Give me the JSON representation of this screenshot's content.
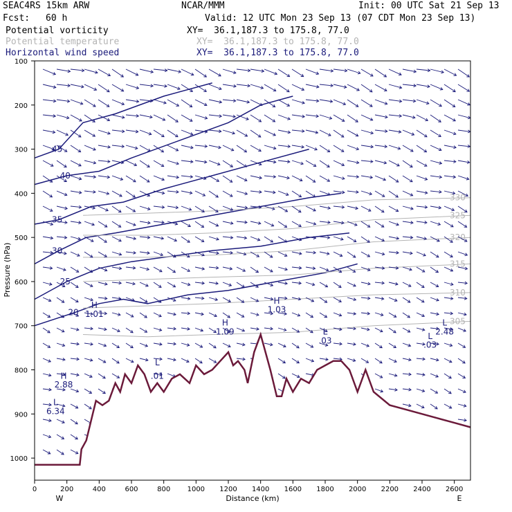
{
  "header": {
    "model": "SEAC4RS 15km ARW",
    "org": "NCAR/MMM",
    "init": "Init: 00 UTC Sat 21 Sep 13",
    "fcst_label": "Fcst:",
    "fcst_value": "60 h",
    "valid": "Valid: 12 UTC Mon 23 Sep 13 (07 CDT Mon 23 Sep 13)"
  },
  "fields": [
    {
      "name": "Potential vorticity",
      "xy": "XY=  36.1,187.3 to 175.8, 77.0",
      "color": "#000000"
    },
    {
      "name": "Potential temperature",
      "xy": "XY=  36.1,187.3 to 175.8, 77.0",
      "color": "#b4b4b4"
    },
    {
      "name": "Horizontal wind speed",
      "xy": "XY=  36.1,187.3 to 175.8, 77.0",
      "color": "#1a1a7a"
    }
  ],
  "chart_data": {
    "type": "cross-section",
    "xlabel": "Distance (km)",
    "ylabel": "Pressure (hPa)",
    "xlim": [
      0,
      2700
    ],
    "ylim": [
      1050,
      100
    ],
    "x_ticks": [
      0,
      200,
      400,
      600,
      800,
      1000,
      1200,
      1400,
      1600,
      1800,
      2000,
      2200,
      2400,
      2600
    ],
    "y_ticks": [
      100,
      200,
      300,
      400,
      500,
      600,
      700,
      800,
      900,
      1000
    ],
    "west_label": "W",
    "east_label": "E",
    "terrain": [
      [
        0,
        1015
      ],
      [
        280,
        1015
      ],
      [
        290,
        980
      ],
      [
        320,
        960
      ],
      [
        360,
        900
      ],
      [
        380,
        870
      ],
      [
        420,
        880
      ],
      [
        460,
        870
      ],
      [
        500,
        830
      ],
      [
        530,
        850
      ],
      [
        560,
        810
      ],
      [
        600,
        830
      ],
      [
        640,
        790
      ],
      [
        680,
        810
      ],
      [
        720,
        850
      ],
      [
        760,
        830
      ],
      [
        800,
        850
      ],
      [
        850,
        820
      ],
      [
        900,
        810
      ],
      [
        960,
        830
      ],
      [
        1000,
        790
      ],
      [
        1050,
        810
      ],
      [
        1100,
        800
      ],
      [
        1150,
        780
      ],
      [
        1200,
        760
      ],
      [
        1230,
        790
      ],
      [
        1260,
        780
      ],
      [
        1300,
        800
      ],
      [
        1320,
        830
      ],
      [
        1360,
        760
      ],
      [
        1400,
        720
      ],
      [
        1430,
        760
      ],
      [
        1460,
        800
      ],
      [
        1500,
        860
      ],
      [
        1530,
        860
      ],
      [
        1560,
        820
      ],
      [
        1600,
        850
      ],
      [
        1650,
        820
      ],
      [
        1700,
        830
      ],
      [
        1750,
        800
      ],
      [
        1800,
        790
      ],
      [
        1850,
        780
      ],
      [
        1900,
        780
      ],
      [
        1950,
        800
      ],
      [
        2000,
        850
      ],
      [
        2050,
        800
      ],
      [
        2100,
        850
      ],
      [
        2200,
        880
      ],
      [
        2300,
        890
      ],
      [
        2400,
        900
      ],
      [
        2500,
        910
      ],
      [
        2600,
        920
      ],
      [
        2700,
        930
      ]
    ],
    "wind_speed_contours": [
      {
        "label": "45",
        "points": [
          [
            0,
            320
          ],
          [
            150,
            300
          ],
          [
            300,
            240
          ],
          [
            500,
            220
          ],
          [
            800,
            180
          ],
          [
            1100,
            150
          ]
        ]
      },
      {
        "label": "40",
        "points": [
          [
            0,
            380
          ],
          [
            200,
            360
          ],
          [
            400,
            350
          ],
          [
            600,
            320
          ],
          [
            900,
            280
          ],
          [
            1200,
            240
          ],
          [
            1400,
            200
          ],
          [
            1600,
            180
          ]
        ]
      },
      {
        "label": "35",
        "points": [
          [
            0,
            470
          ],
          [
            150,
            460
          ],
          [
            350,
            430
          ],
          [
            550,
            420
          ],
          [
            800,
            390
          ],
          [
            1100,
            360
          ],
          [
            1400,
            330
          ],
          [
            1700,
            300
          ]
        ]
      },
      {
        "label": "30",
        "points": [
          [
            0,
            560
          ],
          [
            150,
            530
          ],
          [
            320,
            500
          ],
          [
            500,
            490
          ],
          [
            800,
            470
          ],
          [
            1100,
            450
          ],
          [
            1400,
            430
          ],
          [
            1700,
            410
          ],
          [
            1900,
            400
          ]
        ]
      },
      {
        "label": "25",
        "points": [
          [
            0,
            640
          ],
          [
            200,
            600
          ],
          [
            400,
            570
          ],
          [
            600,
            555
          ],
          [
            900,
            540
          ],
          [
            1100,
            530
          ],
          [
            1400,
            520
          ],
          [
            1700,
            500
          ],
          [
            1950,
            490
          ]
        ]
      },
      {
        "label": "20",
        "points": [
          [
            0,
            700
          ],
          [
            250,
            670
          ],
          [
            400,
            650
          ],
          [
            550,
            640
          ],
          [
            700,
            650
          ],
          [
            950,
            630
          ],
          [
            1200,
            620
          ],
          [
            1500,
            600
          ],
          [
            1800,
            580
          ],
          [
            2000,
            560
          ]
        ]
      }
    ],
    "theta_contours": [
      {
        "label": "305",
        "points": [
          [
            300,
            720
          ],
          [
            700,
            725
          ],
          [
            1100,
            720
          ],
          [
            1600,
            715
          ],
          [
            2100,
            700
          ],
          [
            2700,
            690
          ]
        ]
      },
      {
        "label": "310",
        "points": [
          [
            300,
            660
          ],
          [
            700,
            655
          ],
          [
            1100,
            650
          ],
          [
            1600,
            640
          ],
          [
            2100,
            630
          ],
          [
            2700,
            625
          ]
        ]
      },
      {
        "label": "315",
        "points": [
          [
            300,
            600
          ],
          [
            700,
            595
          ],
          [
            1100,
            590
          ],
          [
            1600,
            585
          ],
          [
            2100,
            570
          ],
          [
            2700,
            560
          ]
        ]
      },
      {
        "label": "320",
        "points": [
          [
            300,
            545
          ],
          [
            700,
            545
          ],
          [
            1100,
            540
          ],
          [
            1600,
            530
          ],
          [
            2100,
            510
          ],
          [
            2700,
            500
          ]
        ]
      },
      {
        "label": "325",
        "points": [
          [
            300,
            495
          ],
          [
            700,
            495
          ],
          [
            1100,
            490
          ],
          [
            1600,
            480
          ],
          [
            2100,
            460
          ],
          [
            2700,
            450
          ]
        ]
      },
      {
        "label": "330",
        "points": [
          [
            300,
            450
          ],
          [
            700,
            445
          ],
          [
            1100,
            440
          ],
          [
            1600,
            430
          ],
          [
            2100,
            415
          ],
          [
            2700,
            410
          ]
        ]
      }
    ],
    "annotations": [
      {
        "text": "H",
        "x": 370,
        "y": 660
      },
      {
        "text": "1.01",
        "x": 370,
        "y": 680
      },
      {
        "text": "H",
        "x": 1180,
        "y": 700
      },
      {
        "text": "1.09",
        "x": 1180,
        "y": 720
      },
      {
        "text": "H",
        "x": 1500,
        "y": 650
      },
      {
        "text": "1.03",
        "x": 1500,
        "y": 670
      },
      {
        "text": "L",
        "x": 760,
        "y": 790
      },
      {
        "text": ".01",
        "x": 760,
        "y": 820
      },
      {
        "text": "L",
        "x": 1800,
        "y": 720
      },
      {
        "text": ".03",
        "x": 1800,
        "y": 740
      },
      {
        "text": "L",
        "x": 2450,
        "y": 730
      },
      {
        "text": ".03",
        "x": 2450,
        "y": 750
      },
      {
        "text": "L",
        "x": 2540,
        "y": 700
      },
      {
        "text": "2.48",
        "x": 2540,
        "y": 720
      },
      {
        "text": "H",
        "x": 180,
        "y": 820
      },
      {
        "text": "2.88",
        "x": 180,
        "y": 840
      },
      {
        "text": "L",
        "x": 130,
        "y": 880
      },
      {
        "text": "6.34",
        "x": 130,
        "y": 900
      }
    ]
  }
}
